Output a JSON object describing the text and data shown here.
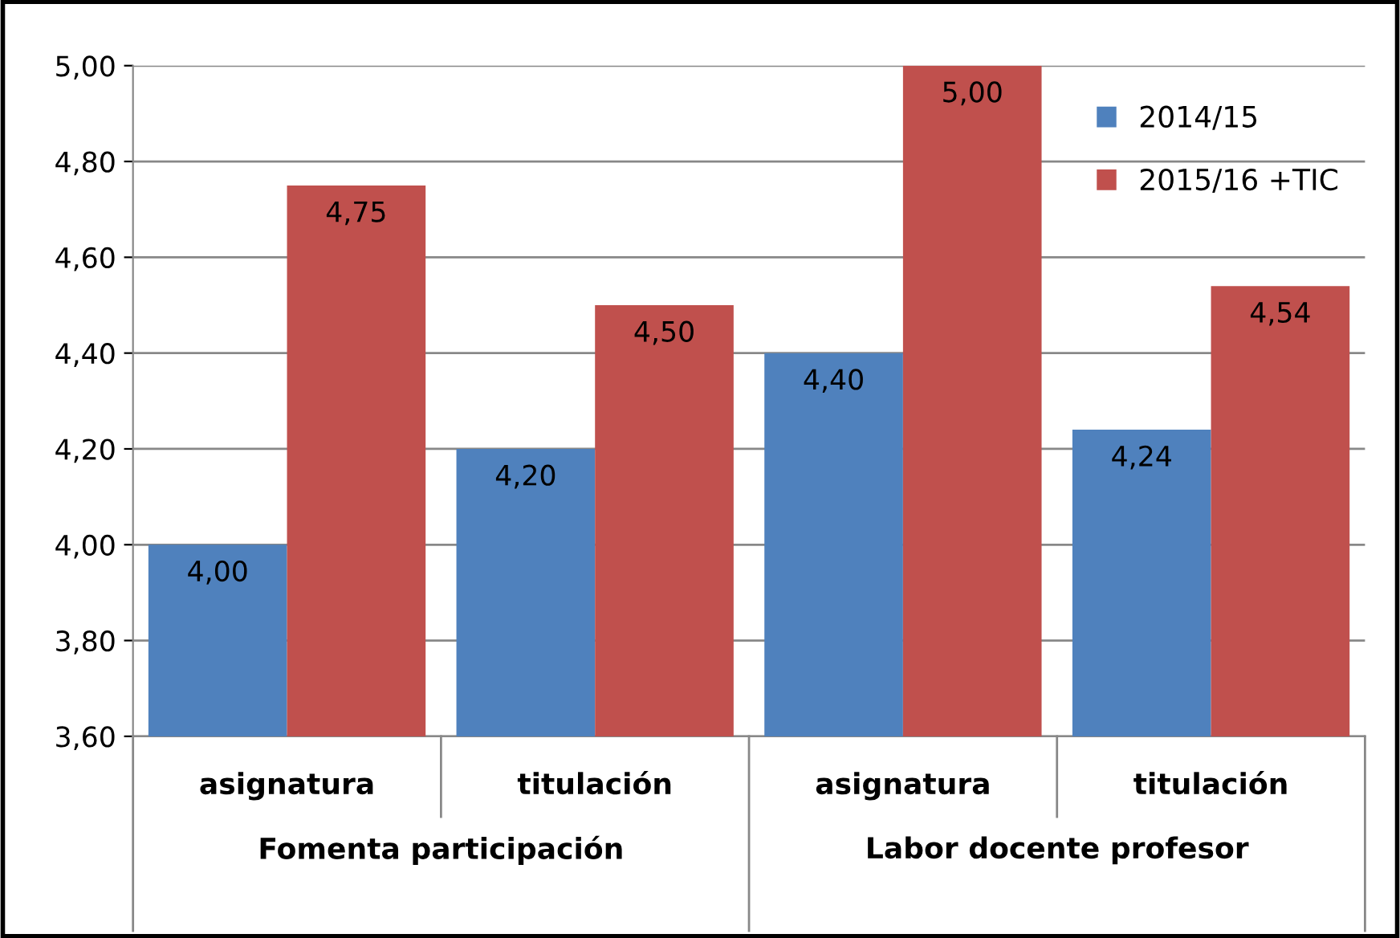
{
  "chart_data": {
    "type": "bar",
    "categories": [
      "asignatura",
      "titulación",
      "asignatura",
      "titulación"
    ],
    "annotations": [
      "Fomenta participación",
      "Labor docente profesor"
    ],
    "series": [
      {
        "name": "2014/15",
        "color": "#4f81bd",
        "values": [
          4.0,
          4.2,
          4.4,
          4.24
        ],
        "value_labels": [
          "4,00",
          "4,20",
          "4,40",
          "4,24"
        ]
      },
      {
        "name": "2015/16 +TIC",
        "color": "#c0504d",
        "values": [
          4.75,
          4.5,
          5.0,
          4.54
        ],
        "value_labels": [
          "4,75",
          "4,50",
          "5,00",
          "4,54"
        ]
      }
    ],
    "ylim": [
      3.6,
      5.0
    ],
    "yticks": [
      {
        "value": 3.6,
        "label": "3,60"
      },
      {
        "value": 3.8,
        "label": "3,80"
      },
      {
        "value": 4.0,
        "label": "4,00"
      },
      {
        "value": 4.2,
        "label": "4,20"
      },
      {
        "value": 4.4,
        "label": "4,40"
      },
      {
        "value": 4.6,
        "label": "4,60"
      },
      {
        "value": 4.8,
        "label": "4,80"
      },
      {
        "value": 5.0,
        "label": "5,00"
      }
    ],
    "grid": "y",
    "legend": "top right"
  }
}
